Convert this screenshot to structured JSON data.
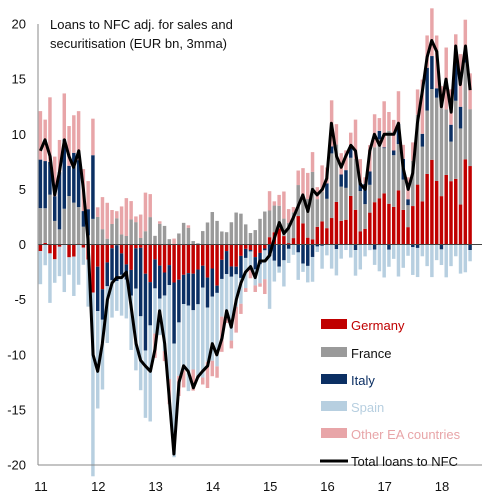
{
  "chart_data": {
    "type": "bar",
    "subtype": "stacked bar with line overlay",
    "title_lines": [
      "Loans to NFC adj. for sales and",
      "securitisation (EUR bn, 3mma)"
    ],
    "xlabel": "",
    "ylabel": "",
    "ylim": [
      -20,
      20
    ],
    "yticks": [
      -20,
      -15,
      -10,
      -5,
      0,
      5,
      10,
      15,
      20
    ],
    "xticks": [
      {
        "label": "11",
        "x": 2011.0
      },
      {
        "label": "12",
        "x": 2012.0
      },
      {
        "label": "13",
        "x": 2013.0
      },
      {
        "label": "14",
        "x": 2014.0
      },
      {
        "label": "15",
        "x": 2015.0
      },
      {
        "label": "16",
        "x": 2016.0
      },
      {
        "label": "17",
        "x": 2017.0
      },
      {
        "label": "18",
        "x": 2018.0
      }
    ],
    "xlim": [
      2011.0,
      2018.75
    ],
    "grid": false,
    "legend_position": "bottom-right",
    "series_colors": {
      "Germany": "#c00000",
      "France": "#9a9a9a",
      "Italy": "#0b2f63",
      "Spain": "#b7cfe0",
      "Other EA countries": "#e8a5a8",
      "Total loans to NFC": "#000000"
    },
    "series": [
      {
        "name": "Germany"
      },
      {
        "name": "France"
      },
      {
        "name": "Italy"
      },
      {
        "name": "Spain"
      },
      {
        "name": "Other EA countries"
      },
      {
        "name": "Total loans to NFC",
        "style": "line"
      }
    ],
    "total_line_keypoints": [
      [
        2011.0,
        8.5
      ],
      [
        2011.08,
        9.5
      ],
      [
        2011.17,
        8.0
      ],
      [
        2011.25,
        4.5
      ],
      [
        2011.33,
        6.5
      ],
      [
        2011.42,
        9.5
      ],
      [
        2011.5,
        8.0
      ],
      [
        2011.58,
        7.0
      ],
      [
        2011.67,
        8.5
      ],
      [
        2011.75,
        5.0
      ],
      [
        2011.83,
        0.5
      ],
      [
        2011.92,
        -10.0
      ],
      [
        2012.0,
        -11.5
      ],
      [
        2012.08,
        -9.0
      ],
      [
        2012.17,
        -5.0
      ],
      [
        2012.25,
        -3.5
      ],
      [
        2012.33,
        -3.0
      ],
      [
        2012.42,
        -3.0
      ],
      [
        2012.5,
        -2.5
      ],
      [
        2012.58,
        -5.5
      ],
      [
        2012.67,
        -9.0
      ],
      [
        2012.75,
        -10.5
      ],
      [
        2012.83,
        -11.0
      ],
      [
        2012.92,
        -11.5
      ],
      [
        2013.0,
        -9.5
      ],
      [
        2013.08,
        -6.0
      ],
      [
        2013.17,
        -9.0
      ],
      [
        2013.25,
        -14.0
      ],
      [
        2013.33,
        -19.0
      ],
      [
        2013.42,
        -12.5
      ],
      [
        2013.5,
        -11.0
      ],
      [
        2013.58,
        -11.5
      ],
      [
        2013.67,
        -13.0
      ],
      [
        2013.75,
        -12.0
      ],
      [
        2013.83,
        -11.5
      ],
      [
        2013.92,
        -11.0
      ],
      [
        2014.0,
        -9.0
      ],
      [
        2014.08,
        -10.0
      ],
      [
        2014.17,
        -8.5
      ],
      [
        2014.25,
        -6.0
      ],
      [
        2014.33,
        -7.5
      ],
      [
        2014.42,
        -5.0
      ],
      [
        2014.5,
        -3.5
      ],
      [
        2014.58,
        -2.5
      ],
      [
        2014.67,
        -2.0
      ],
      [
        2014.75,
        -3.0
      ],
      [
        2014.83,
        -1.5
      ],
      [
        2014.92,
        -1.5
      ],
      [
        2015.0,
        -1.0
      ],
      [
        2015.08,
        0.5
      ],
      [
        2015.17,
        2.0
      ],
      [
        2015.25,
        1.0
      ],
      [
        2015.33,
        1.5
      ],
      [
        2015.42,
        2.5
      ],
      [
        2015.5,
        3.5
      ],
      [
        2015.58,
        4.5
      ],
      [
        2015.67,
        3.0
      ],
      [
        2015.75,
        5.0
      ],
      [
        2015.83,
        4.5
      ],
      [
        2015.92,
        5.0
      ],
      [
        2016.0,
        6.0
      ],
      [
        2016.08,
        11.0
      ],
      [
        2016.17,
        8.0
      ],
      [
        2016.25,
        7.0
      ],
      [
        2016.33,
        8.0
      ],
      [
        2016.42,
        9.0
      ],
      [
        2016.5,
        8.5
      ],
      [
        2016.58,
        5.5
      ],
      [
        2016.67,
        5.0
      ],
      [
        2016.75,
        8.5
      ],
      [
        2016.83,
        10.0
      ],
      [
        2016.92,
        9.0
      ],
      [
        2017.0,
        10.0
      ],
      [
        2017.08,
        10.0
      ],
      [
        2017.17,
        10.0
      ],
      [
        2017.25,
        11.0
      ],
      [
        2017.33,
        7.0
      ],
      [
        2017.42,
        5.0
      ],
      [
        2017.5,
        6.5
      ],
      [
        2017.58,
        11.0
      ],
      [
        2017.67,
        14.0
      ],
      [
        2017.75,
        17.0
      ],
      [
        2017.83,
        18.5
      ],
      [
        2017.92,
        17.5
      ],
      [
        2018.0,
        12.5
      ],
      [
        2018.08,
        15.0
      ],
      [
        2018.17,
        12.0
      ],
      [
        2018.25,
        18.0
      ],
      [
        2018.33,
        14.5
      ],
      [
        2018.42,
        18.0
      ],
      [
        2018.5,
        14.0
      ]
    ]
  }
}
